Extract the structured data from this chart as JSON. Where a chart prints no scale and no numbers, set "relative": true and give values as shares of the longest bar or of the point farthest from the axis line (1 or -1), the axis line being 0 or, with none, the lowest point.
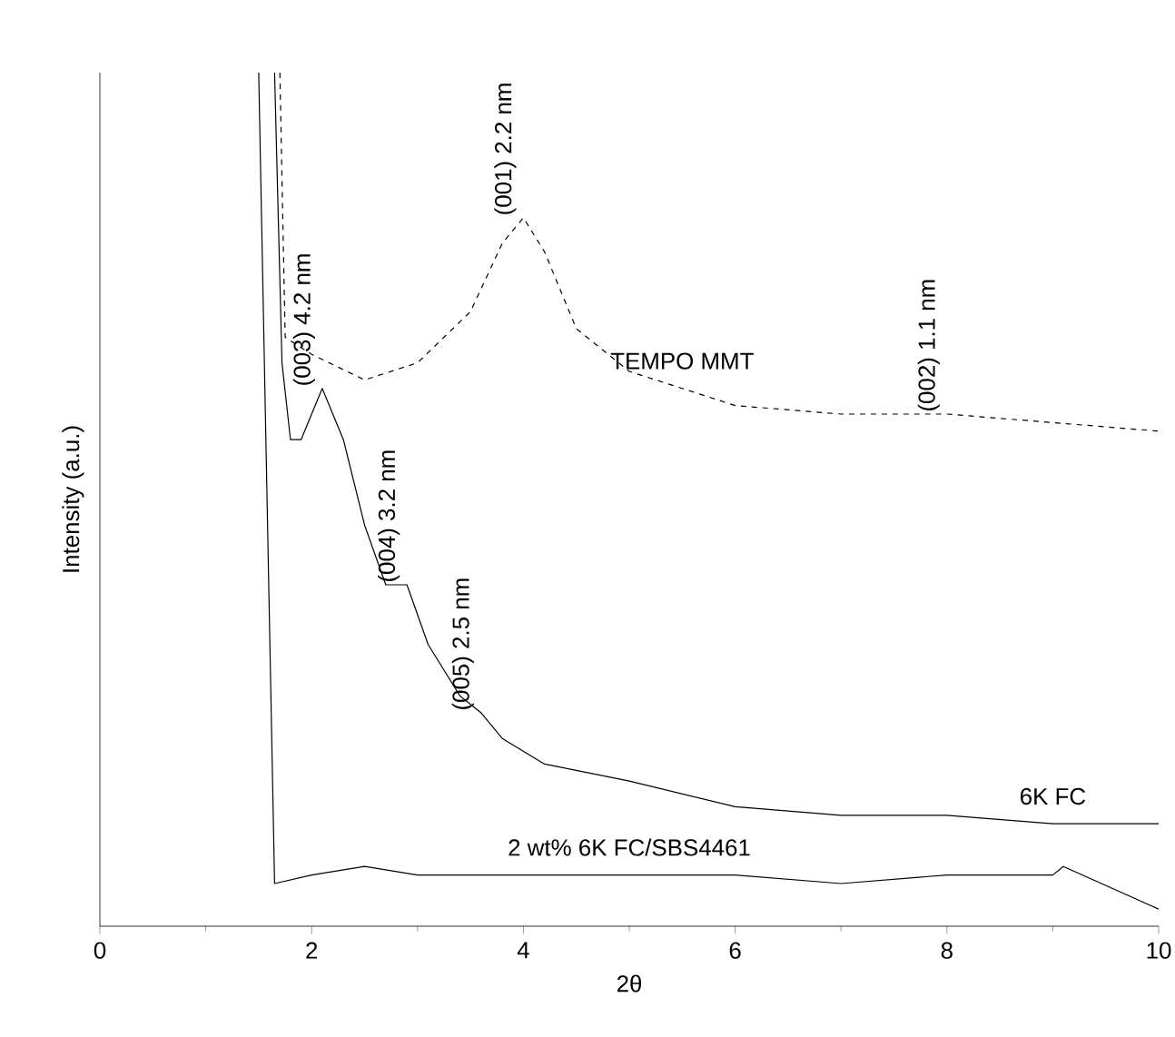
{
  "chart_data": {
    "type": "line",
    "relative": true,
    "xlabel": "2θ",
    "ylabel": "Intensity (a.u.)",
    "xlim": [
      0,
      10
    ],
    "xticks": [
      0,
      2,
      4,
      6,
      8,
      10
    ],
    "grid": false,
    "marker": "none",
    "series": [
      {
        "name": "TEMPO MMT",
        "color": "#000000",
        "line_style": "dashed",
        "x": [
          1.7,
          1.75,
          2,
          2.5,
          3,
          3.5,
          3.8,
          4,
          4.2,
          4.5,
          5,
          5.5,
          6,
          7,
          8,
          9,
          10
        ],
        "values": [
          1.0,
          0.69,
          0.67,
          0.64,
          0.66,
          0.72,
          0.8,
          0.83,
          0.79,
          0.7,
          0.65,
          0.63,
          0.61,
          0.6,
          0.6,
          0.59,
          0.58
        ]
      },
      {
        "name": "6K FC",
        "color": "#000000",
        "line_style": "solid",
        "x": [
          1.65,
          1.72,
          1.8,
          1.9,
          2.1,
          2.3,
          2.5,
          2.7,
          2.9,
          3.1,
          3.4,
          3.6,
          3.8,
          4.2,
          5,
          6,
          7,
          8,
          9,
          10
        ],
        "values": [
          1.0,
          0.66,
          0.57,
          0.57,
          0.63,
          0.57,
          0.47,
          0.4,
          0.4,
          0.33,
          0.27,
          0.25,
          0.22,
          0.19,
          0.17,
          0.14,
          0.13,
          0.13,
          0.12,
          0.12
        ]
      },
      {
        "name": "2 wt% 6K FC/SBS4461",
        "color": "#000000",
        "line_style": "solid",
        "x": [
          1.5,
          1.65,
          2,
          2.5,
          3,
          4,
          5,
          6,
          7,
          8,
          9,
          9.1,
          10
        ],
        "values": [
          1.0,
          0.05,
          0.06,
          0.07,
          0.06,
          0.06,
          0.06,
          0.06,
          0.05,
          0.06,
          0.06,
          0.07,
          0.02
        ]
      }
    ],
    "annotations": [
      {
        "text": "(003) 4.2 nm",
        "x": 2.1,
        "y": 0.63
      },
      {
        "text": "(001) 2.2 nm",
        "x": 4,
        "y": 0.83
      },
      {
        "text": "(002) 1.1 nm",
        "x": 8,
        "y": 0.6
      },
      {
        "text": "(004) 3.2 nm",
        "x": 2.9,
        "y": 0.4
      },
      {
        "text": "(005) 2.5 nm",
        "x": 3.6,
        "y": 0.25
      }
    ]
  }
}
